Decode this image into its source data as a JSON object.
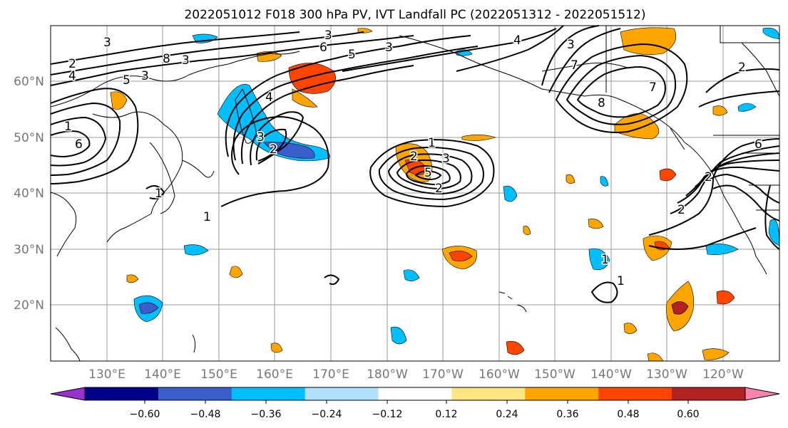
{
  "title": "2022051012 F018 300 hPa PV, IVT Landfall PC (2022051312 - 2022051512)",
  "map": {
    "lon_ticks": [
      "130°E",
      "140°E",
      "150°E",
      "160°E",
      "170°E",
      "180°W",
      "170°W",
      "160°W",
      "150°W",
      "140°W",
      "130°W",
      "120°W"
    ],
    "lat_ticks": [
      "60°N",
      "50°N",
      "40°N",
      "30°N",
      "20°N"
    ],
    "lon_range": [
      120,
      250
    ],
    "lat_range": [
      10,
      70
    ],
    "gridlines": true,
    "contour_labels": [
      "3",
      "2",
      "4",
      "8",
      "3",
      "1",
      "6",
      "5",
      "3",
      "4",
      "3",
      "2",
      "3",
      "6",
      "1",
      "3",
      "5",
      "4",
      "3",
      "7",
      "2",
      "5",
      "1",
      "2",
      "3",
      "2",
      "8",
      "1",
      "2",
      "6",
      "7",
      "1",
      "2",
      "1"
    ]
  },
  "colorbar": {
    "ticks": [
      "−0.60",
      "−0.48",
      "−0.36",
      "−0.24",
      "−0.12",
      "0.12",
      "0.24",
      "0.36",
      "0.48",
      "0.60"
    ],
    "colors": [
      "#9932cc",
      "#00008b",
      "#3a5fcd",
      "#00bfff",
      "#b0e2ff",
      "#ffffff",
      "#ffe680",
      "#ffa500",
      "#ff4500",
      "#b22222",
      "#ff82ab"
    ]
  }
}
